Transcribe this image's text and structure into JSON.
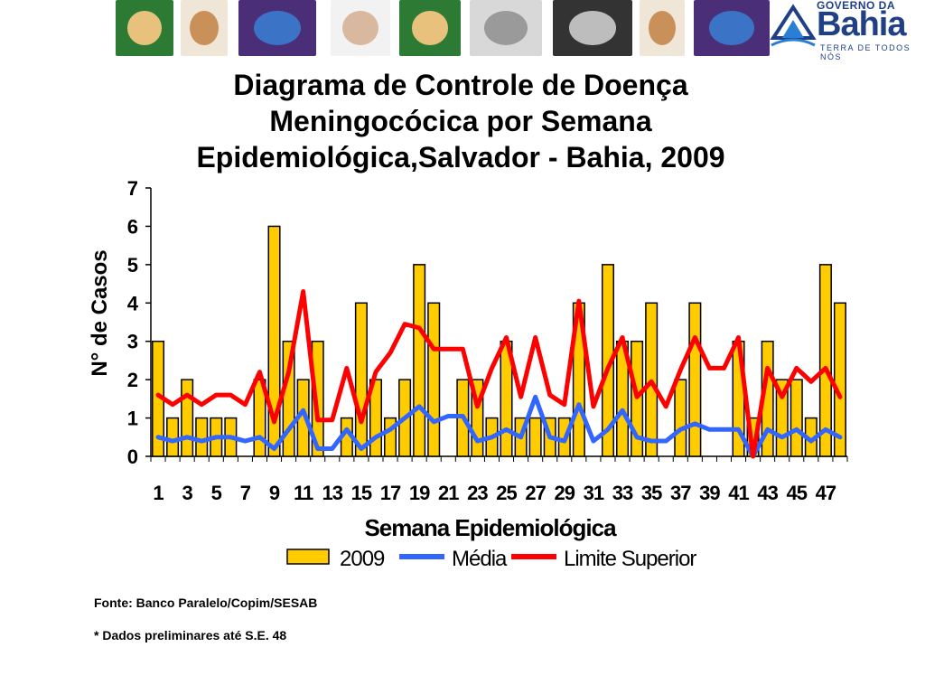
{
  "header": {
    "logo": {
      "line1": "GOVERNO DA",
      "line2": "Bahia",
      "tagline": "TERRA DE TODOS NÓS"
    },
    "photos": [
      {
        "icon": "hands-circle-photo",
        "bg": "#2d7a34",
        "fg": "#e8c27c"
      },
      {
        "icon": "hands-heart-photo",
        "bg": "#f0e6d8",
        "fg": "#c9905a"
      },
      {
        "icon": "globe-hands-photo",
        "bg": "#4a2f78",
        "fg": "#3b74c7"
      },
      {
        "icon": "holding-hands-photo",
        "bg": "#f2f2f2",
        "fg": "#d9b8a0"
      },
      {
        "icon": "hands-circle-photo",
        "bg": "#2d7a34",
        "fg": "#e8c27c"
      },
      {
        "icon": "clasped-hands-photo",
        "bg": "#d8d8d8",
        "fg": "#9a9a9a"
      },
      {
        "icon": "stacked-hands-photo",
        "bg": "#333333",
        "fg": "#bdbdbd"
      },
      {
        "icon": "hands-heart-photo",
        "bg": "#f0e6d8",
        "fg": "#c9905a"
      },
      {
        "icon": "globe-hands-photo",
        "bg": "#4a2f78",
        "fg": "#3b74c7"
      }
    ]
  },
  "title": [
    "Diagrama de Controle de Doença",
    "Meningocócica por Semana",
    "Epidemiológica,Salvador - Bahia, 2009"
  ],
  "chart_data": {
    "type": "bar",
    "xlabel": "Semana Epidemiológica",
    "ylabel": "N° de Casos",
    "ylim": [
      0,
      7
    ],
    "yticks": [
      0,
      1,
      2,
      3,
      4,
      5,
      6,
      7
    ],
    "categories": [
      1,
      2,
      3,
      4,
      5,
      6,
      7,
      8,
      9,
      10,
      11,
      12,
      13,
      14,
      15,
      16,
      17,
      18,
      19,
      20,
      21,
      22,
      23,
      24,
      25,
      26,
      27,
      28,
      29,
      30,
      31,
      32,
      33,
      34,
      35,
      36,
      37,
      38,
      39,
      40,
      41,
      42,
      43,
      44,
      45,
      46,
      47,
      48
    ],
    "xtick_labels": [
      "1",
      "3",
      "5",
      "7",
      "9",
      "11",
      "13",
      "15",
      "17",
      "19",
      "21",
      "23",
      "25",
      "27",
      "29",
      "31",
      "33",
      "35",
      "37",
      "39",
      "41",
      "43",
      "45",
      "47"
    ],
    "legend_position": "bottom",
    "series": [
      {
        "name": "2009",
        "kind": "bar",
        "color": "#ffcc00",
        "values": [
          3,
          1,
          2,
          1,
          1,
          1,
          0,
          2,
          6,
          3,
          2,
          3,
          0,
          1,
          4,
          2,
          1,
          2,
          5,
          4,
          0,
          2,
          2,
          1,
          3,
          1,
          1,
          1,
          1,
          4,
          0,
          5,
          3,
          3,
          4,
          0,
          2,
          4,
          0,
          0,
          3,
          1,
          3,
          2,
          2,
          1,
          5,
          4
        ]
      },
      {
        "name": "Média",
        "kind": "line",
        "color": "#3366ff",
        "values": [
          0.5,
          0.4,
          0.5,
          0.4,
          0.5,
          0.5,
          0.4,
          0.5,
          0.2,
          0.7,
          1.2,
          0.2,
          0.2,
          0.7,
          0.2,
          0.5,
          0.7,
          1.0,
          1.3,
          0.9,
          1.05,
          1.05,
          0.4,
          0.5,
          0.7,
          0.5,
          1.55,
          0.5,
          0.4,
          1.35,
          0.4,
          0.7,
          1.2,
          0.5,
          0.4,
          0.4,
          0.7,
          0.85,
          0.7,
          0.7,
          0.7,
          0.0,
          0.7,
          0.5,
          0.7,
          0.4,
          0.7,
          0.5
        ]
      },
      {
        "name": "Limite Superior",
        "kind": "line",
        "color": "#ff0000",
        "values": [
          1.6,
          1.35,
          1.6,
          1.35,
          1.6,
          1.6,
          1.35,
          2.2,
          0.9,
          2.2,
          4.3,
          0.95,
          0.95,
          2.3,
          0.9,
          2.2,
          2.7,
          3.45,
          3.35,
          2.8,
          2.8,
          2.8,
          1.3,
          2.3,
          3.1,
          1.55,
          3.1,
          1.6,
          1.35,
          4.05,
          1.3,
          2.3,
          3.1,
          1.55,
          1.95,
          1.3,
          2.25,
          3.1,
          2.3,
          2.3,
          3.1,
          0.0,
          2.3,
          1.55,
          2.3,
          1.95,
          2.3,
          1.55
        ]
      }
    ]
  },
  "footnotes": {
    "source": "Fonte: Banco Paralelo/Copim/SESAB",
    "note": "* Dados preliminares até S.E. 48"
  }
}
